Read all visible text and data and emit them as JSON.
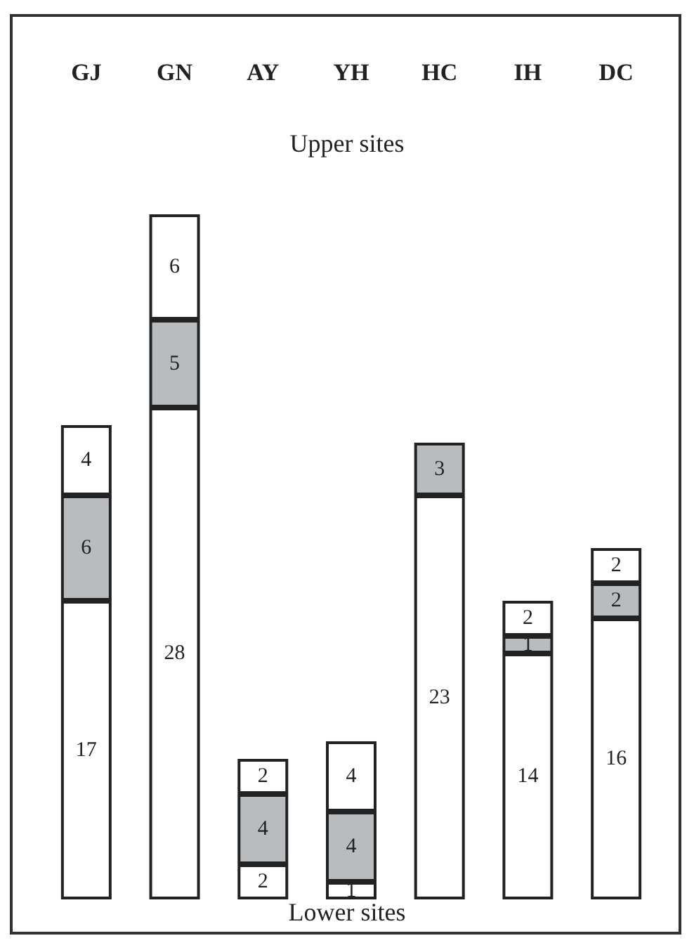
{
  "chart_data": {
    "type": "bar",
    "stacked": true,
    "categories": [
      "GJ",
      "GN",
      "AY",
      "YH",
      "HC",
      "IH",
      "DC"
    ],
    "series": [
      {
        "color": "#ffffff",
        "values": [
          17,
          28,
          2,
          1,
          23,
          14,
          16
        ]
      },
      {
        "color": "#b9bcbf",
        "values": [
          6,
          5,
          4,
          4,
          3,
          1,
          2
        ]
      },
      {
        "color": "#ffffff",
        "values": [
          4,
          6,
          2,
          4,
          null,
          2,
          2
        ]
      }
    ],
    "tick_labels": "x",
    "data_labels": true,
    "annotations": [
      "Upper sites",
      "Lower sites"
    ]
  }
}
